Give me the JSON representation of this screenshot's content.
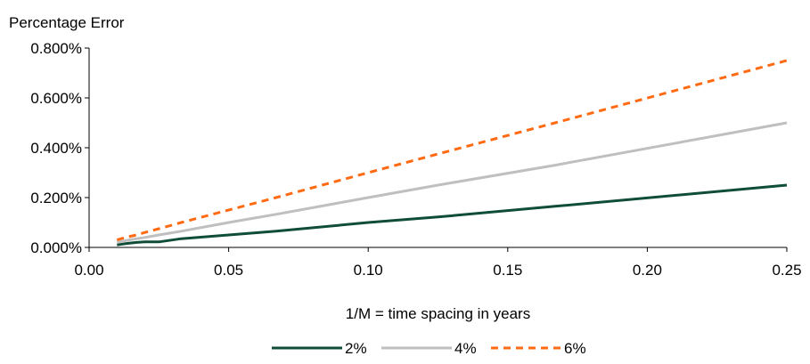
{
  "chart_data": {
    "type": "line",
    "title": "",
    "ylabel": "Percentage Error",
    "xlabel": "1/M = time spacing in years",
    "xlim": [
      0.0,
      0.25
    ],
    "ylim": [
      0.0,
      0.8
    ],
    "x_ticks": [
      0.0,
      0.05,
      0.1,
      0.15,
      0.2,
      0.25
    ],
    "x_tick_labels": [
      "0.00",
      "0.05",
      "0.10",
      "0.15",
      "0.20",
      "0.25"
    ],
    "y_ticks": [
      0.0,
      0.2,
      0.4,
      0.6,
      0.8
    ],
    "y_tick_labels": [
      "0.000%",
      "0.200%",
      "0.400%",
      "0.600%",
      "0.800%"
    ],
    "grid": false,
    "legend_position": "bottom",
    "series": [
      {
        "name": "2%",
        "color": "#0f4d38",
        "style": "solid",
        "x": [
          0.01,
          0.013,
          0.017,
          0.02,
          0.025,
          0.033,
          0.05,
          0.067,
          0.1,
          0.125,
          0.167,
          0.25
        ],
        "y": [
          0.01,
          0.015,
          0.02,
          0.022,
          0.022,
          0.035,
          0.05,
          0.065,
          0.1,
          0.122,
          0.165,
          0.25
        ]
      },
      {
        "name": "4%",
        "color": "#bfbfbf",
        "style": "solid",
        "x": [
          0.01,
          0.013,
          0.017,
          0.02,
          0.025,
          0.033,
          0.05,
          0.067,
          0.1,
          0.125,
          0.167,
          0.25
        ],
        "y": [
          0.02,
          0.027,
          0.035,
          0.04,
          0.05,
          0.065,
          0.1,
          0.133,
          0.2,
          0.25,
          0.33,
          0.5
        ]
      },
      {
        "name": "6%",
        "color": "#ff6a13",
        "style": "dashed",
        "x": [
          0.01,
          0.013,
          0.017,
          0.02,
          0.025,
          0.033,
          0.05,
          0.067,
          0.1,
          0.125,
          0.167,
          0.25
        ],
        "y": [
          0.03,
          0.04,
          0.05,
          0.06,
          0.075,
          0.1,
          0.15,
          0.2,
          0.3,
          0.375,
          0.5,
          0.75
        ]
      }
    ]
  }
}
